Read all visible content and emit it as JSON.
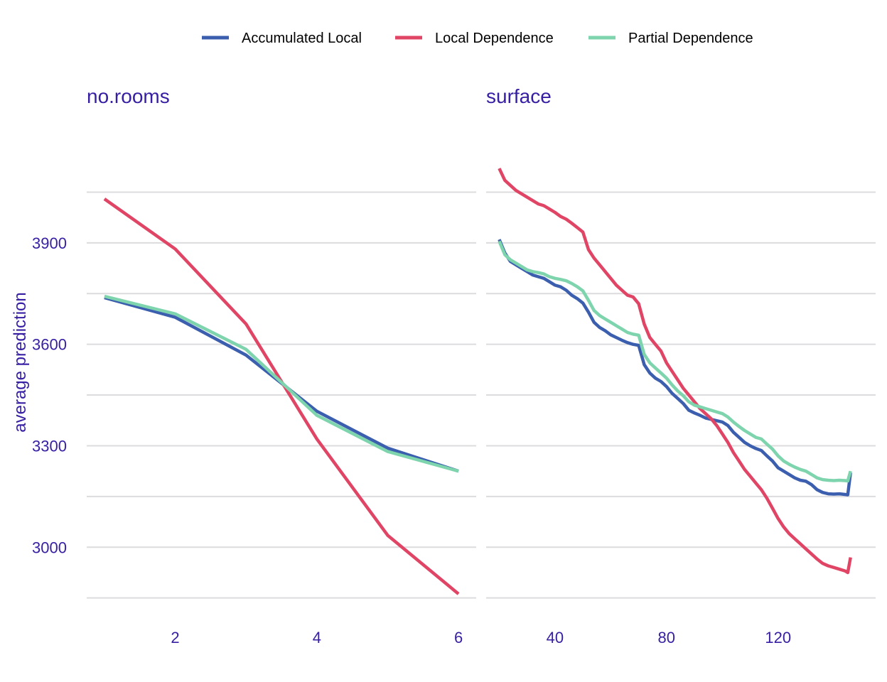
{
  "legend": {
    "position": "top",
    "entries": [
      {
        "name": "Accumulated Local",
        "color": "#4378bf"
      },
      {
        "name": "Local Dependence",
        "color": "#ae2c87"
      },
      {
        "name": "Partial Dependence",
        "color": "#8bdcbe"
      }
    ]
  },
  "y_axis_title": "average prediction",
  "chart_data": [
    {
      "type": "line",
      "panel": "no.rooms",
      "title": "no.rooms",
      "ylabel": "average prediction",
      "xlim": [
        0.75,
        6.25
      ],
      "ylim": [
        2780,
        4240
      ],
      "x_ticks": [
        2,
        4,
        6
      ],
      "y_ticks": [
        3000,
        3300,
        3600,
        3900
      ],
      "y_gridlines": [
        2850,
        3000,
        3150,
        3300,
        3450,
        3600,
        3750,
        3900,
        4050
      ],
      "grid": true,
      "series": [
        {
          "name": "Accumulated Local",
          "color": "#3b5fae",
          "x": [
            1,
            2,
            3,
            4,
            5,
            6
          ],
          "y": [
            3738,
            3680,
            3568,
            3402,
            3293,
            3225
          ]
        },
        {
          "name": "Local Dependence",
          "color": "#e04565",
          "x": [
            1,
            2,
            3,
            4,
            5,
            6
          ],
          "y": [
            4030,
            3882,
            3660,
            3320,
            3035,
            2862
          ]
        },
        {
          "name": "Partial Dependence",
          "color": "#7dd4ad",
          "x": [
            1,
            2,
            3,
            4,
            5,
            6
          ],
          "y": [
            3742,
            3690,
            3585,
            3390,
            3283,
            3225
          ]
        }
      ]
    },
    {
      "type": "line",
      "panel": "surface",
      "title": "surface",
      "xlim": [
        15.3,
        155
      ],
      "ylim": [
        2780,
        4240
      ],
      "x_ticks": [
        40,
        80,
        120
      ],
      "y_ticks": [
        3000,
        3300,
        3600,
        3900
      ],
      "y_gridlines": [
        2850,
        3000,
        3150,
        3300,
        3450,
        3600,
        3750,
        3900,
        4050
      ],
      "grid": true,
      "series": [
        {
          "name": "Accumulated Local",
          "color": "#3b5fae",
          "x": [
            20,
            22,
            24,
            26,
            28,
            30,
            32,
            34,
            36,
            38,
            40,
            42,
            44,
            46,
            48,
            50,
            52,
            54,
            56,
            58,
            60,
            62,
            64,
            66,
            68,
            70,
            72,
            74,
            76,
            78,
            80,
            82,
            84,
            86,
            88,
            90,
            92,
            94,
            96,
            98,
            100,
            102,
            104,
            106,
            108,
            110,
            112,
            114,
            116,
            118,
            120,
            122,
            124,
            126,
            128,
            130,
            132,
            134,
            136,
            138,
            140,
            142,
            144,
            145,
            146
          ],
          "y": [
            3910,
            3870,
            3845,
            3835,
            3825,
            3815,
            3805,
            3800,
            3795,
            3785,
            3775,
            3770,
            3760,
            3745,
            3735,
            3722,
            3695,
            3665,
            3650,
            3640,
            3628,
            3620,
            3612,
            3605,
            3600,
            3597,
            3540,
            3515,
            3500,
            3490,
            3475,
            3455,
            3440,
            3425,
            3405,
            3397,
            3390,
            3382,
            3378,
            3374,
            3370,
            3360,
            3340,
            3325,
            3310,
            3300,
            3292,
            3286,
            3270,
            3255,
            3235,
            3225,
            3215,
            3205,
            3198,
            3195,
            3185,
            3170,
            3162,
            3158,
            3157,
            3158,
            3156,
            3155,
            3220
          ]
        },
        {
          "name": "Local Dependence",
          "color": "#e04565",
          "x": [
            20,
            22,
            24,
            26,
            28,
            30,
            32,
            34,
            36,
            38,
            40,
            42,
            44,
            46,
            48,
            50,
            52,
            54,
            56,
            58,
            60,
            62,
            64,
            66,
            68,
            70,
            72,
            74,
            76,
            78,
            80,
            82,
            84,
            86,
            88,
            90,
            92,
            94,
            96,
            98,
            100,
            102,
            104,
            106,
            108,
            110,
            112,
            114,
            116,
            118,
            120,
            122,
            124,
            126,
            128,
            130,
            132,
            134,
            136,
            138,
            140,
            142,
            144,
            145,
            146
          ],
          "y": [
            4120,
            4085,
            4070,
            4055,
            4045,
            4035,
            4025,
            4015,
            4010,
            4000,
            3990,
            3978,
            3970,
            3958,
            3945,
            3932,
            3880,
            3855,
            3835,
            3815,
            3795,
            3775,
            3760,
            3745,
            3740,
            3720,
            3660,
            3620,
            3600,
            3580,
            3545,
            3520,
            3495,
            3470,
            3450,
            3430,
            3410,
            3395,
            3380,
            3360,
            3335,
            3310,
            3280,
            3255,
            3230,
            3210,
            3190,
            3170,
            3145,
            3115,
            3085,
            3060,
            3040,
            3025,
            3010,
            2995,
            2980,
            2965,
            2952,
            2945,
            2940,
            2935,
            2930,
            2925,
            2970
          ]
        },
        {
          "name": "Partial Dependence",
          "color": "#7dd4ad",
          "x": [
            20,
            22,
            24,
            26,
            28,
            30,
            32,
            34,
            36,
            38,
            40,
            42,
            44,
            46,
            48,
            50,
            52,
            54,
            56,
            58,
            60,
            62,
            64,
            66,
            68,
            70,
            72,
            74,
            76,
            78,
            80,
            82,
            84,
            86,
            88,
            90,
            92,
            94,
            96,
            98,
            100,
            102,
            104,
            106,
            108,
            110,
            112,
            114,
            116,
            118,
            120,
            122,
            124,
            126,
            128,
            130,
            132,
            134,
            136,
            138,
            140,
            142,
            144,
            145,
            146
          ],
          "y": [
            3905,
            3865,
            3850,
            3840,
            3830,
            3820,
            3815,
            3812,
            3808,
            3800,
            3795,
            3792,
            3788,
            3780,
            3770,
            3758,
            3730,
            3700,
            3685,
            3675,
            3665,
            3655,
            3645,
            3635,
            3630,
            3627,
            3570,
            3545,
            3530,
            3515,
            3500,
            3480,
            3462,
            3448,
            3430,
            3420,
            3415,
            3410,
            3405,
            3400,
            3395,
            3385,
            3370,
            3357,
            3345,
            3335,
            3325,
            3320,
            3305,
            3290,
            3270,
            3255,
            3245,
            3237,
            3230,
            3225,
            3215,
            3205,
            3200,
            3198,
            3197,
            3198,
            3197,
            3196,
            3225
          ]
        }
      ]
    }
  ]
}
